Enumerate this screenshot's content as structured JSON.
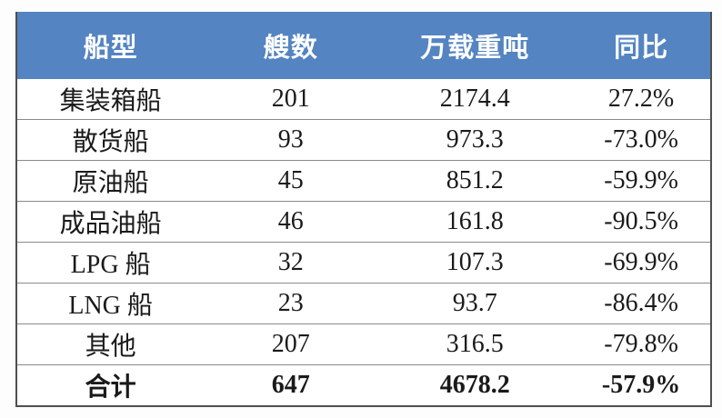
{
  "table": {
    "columns": [
      {
        "key": "type",
        "label": "船型"
      },
      {
        "key": "count",
        "label": "艘数"
      },
      {
        "key": "dwt",
        "label": "万载重吨"
      },
      {
        "key": "yoy",
        "label": "同比"
      }
    ],
    "rows": [
      {
        "type": "集装箱船",
        "count": "201",
        "dwt": "2174.4",
        "yoy": "27.2%"
      },
      {
        "type": "散货船",
        "count": "93",
        "dwt": "973.3",
        "yoy": "-73.0%"
      },
      {
        "type": "原油船",
        "count": "45",
        "dwt": "851.2",
        "yoy": "-59.9%"
      },
      {
        "type": "成品油船",
        "count": "46",
        "dwt": "161.8",
        "yoy": "-90.5%"
      },
      {
        "type": "LPG 船",
        "count": "32",
        "dwt": "107.3",
        "yoy": "-69.9%"
      },
      {
        "type": "LNG 船",
        "count": "23",
        "dwt": "93.7",
        "yoy": "-86.4%"
      },
      {
        "type": "其他",
        "count": "207",
        "dwt": "316.5",
        "yoy": "-79.8%"
      },
      {
        "type": "合计",
        "count": "647",
        "dwt": "4678.2",
        "yoy": "-57.9%"
      }
    ],
    "total_row_index": 7,
    "colors": {
      "header_bg": "#5484C1",
      "header_text": "#FFFFFF",
      "border_outer": "#4F4F4F",
      "border_inner": "#8A8A8A",
      "body_text": "#1A1A1A",
      "body_bg": "#FFFFFF"
    }
  },
  "chart_data": {
    "type": "table",
    "title": "",
    "columns": [
      "船型",
      "艘数",
      "万载重吨",
      "同比"
    ],
    "rows": [
      [
        "集装箱船",
        201,
        2174.4,
        "27.2%"
      ],
      [
        "散货船",
        93,
        973.3,
        "-73.0%"
      ],
      [
        "原油船",
        45,
        851.2,
        "-59.9%"
      ],
      [
        "成品油船",
        46,
        161.8,
        "-90.5%"
      ],
      [
        "LPG 船",
        32,
        107.3,
        "-69.9%"
      ],
      [
        "LNG 船",
        23,
        93.7,
        "-86.4%"
      ],
      [
        "其他",
        207,
        316.5,
        "-79.8%"
      ],
      [
        "合计",
        647,
        4678.2,
        "-57.9%"
      ]
    ],
    "layout_hints": {
      "header_style": "blue-filled, white bold sans text",
      "body_style": "white rows, centered serif text, horizontal separators only",
      "total_row": "bold"
    }
  }
}
